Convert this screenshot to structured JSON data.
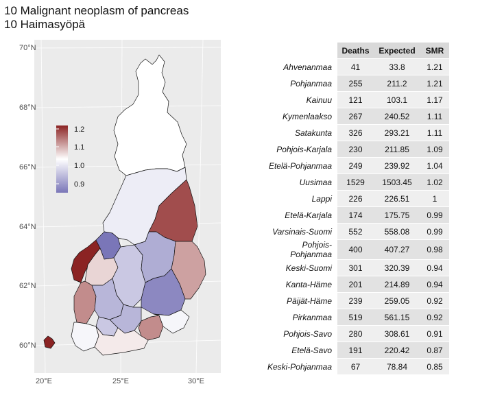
{
  "title": {
    "line1": "10 Malignant neoplasm of pancreas",
    "line2": "10 Haimasyöpä"
  },
  "chart_data": [
    {
      "type": "map",
      "x_ticks": [
        "20°E",
        "25°E",
        "30°E"
      ],
      "y_ticks": [
        "70°N",
        "68°N",
        "66°N",
        "64°N",
        "62°N",
        "60°N"
      ],
      "legend": {
        "position": "left-inside",
        "ticks": [
          "1.2",
          "1.1",
          "1.0",
          "0.9"
        ],
        "tick_values": [
          1.2,
          1.1,
          1.0,
          0.9
        ],
        "range": [
          0.85,
          1.21
        ],
        "colors": {
          "low": "#7a76b8",
          "mid": "#ffffff",
          "high": "#8b2323"
        }
      },
      "regions": [
        {
          "name": "Lappi",
          "smr": 1.0
        },
        {
          "name": "Pohjois-Pohjanmaa",
          "smr": 0.98
        },
        {
          "name": "Kainuu",
          "smr": 1.17
        },
        {
          "name": "Pohjanmaa",
          "smr": 1.21
        },
        {
          "name": "Keski-Pohjanmaa",
          "smr": 0.85
        },
        {
          "name": "Etelä-Pohjanmaa",
          "smr": 1.04
        },
        {
          "name": "Keski-Suomi",
          "smr": 0.94
        },
        {
          "name": "Pohjois-Savo",
          "smr": 0.91
        },
        {
          "name": "Pohjois-Karjala",
          "smr": 1.09
        },
        {
          "name": "Etelä-Savo",
          "smr": 0.87
        },
        {
          "name": "Satakunta",
          "smr": 1.11
        },
        {
          "name": "Pirkanmaa",
          "smr": 0.92
        },
        {
          "name": "Kanta-Häme",
          "smr": 0.94
        },
        {
          "name": "Päijät-Häme",
          "smr": 0.92
        },
        {
          "name": "Kymenlaakso",
          "smr": 1.11
        },
        {
          "name": "Etelä-Karjala",
          "smr": 0.99
        },
        {
          "name": "Varsinais-Suomi",
          "smr": 0.99
        },
        {
          "name": "Uusimaa",
          "smr": 1.02
        },
        {
          "name": "Ahvenanmaa",
          "smr": 1.21
        }
      ]
    },
    {
      "type": "table",
      "columns": [
        "",
        "Deaths",
        "Expected",
        "SMR"
      ],
      "rows": [
        [
          "Ahvenanmaa",
          "41",
          "33.8",
          "1.21"
        ],
        [
          "Pohjanmaa",
          "255",
          "211.2",
          "1.21"
        ],
        [
          "Kainuu",
          "121",
          "103.1",
          "1.17"
        ],
        [
          "Kymenlaakso",
          "267",
          "240.52",
          "1.11"
        ],
        [
          "Satakunta",
          "326",
          "293.21",
          "1.11"
        ],
        [
          "Pohjois-Karjala",
          "230",
          "211.85",
          "1.09"
        ],
        [
          "Etelä-Pohjanmaa",
          "249",
          "239.92",
          "1.04"
        ],
        [
          "Uusimaa",
          "1529",
          "1503.45",
          "1.02"
        ],
        [
          "Lappi",
          "226",
          "226.51",
          "1"
        ],
        [
          "Etelä-Karjala",
          "174",
          "175.75",
          "0.99"
        ],
        [
          "Varsinais-Suomi",
          "552",
          "558.08",
          "0.99"
        ],
        [
          "Pohjois-Pohjanmaa",
          "400",
          "407.27",
          "0.98"
        ],
        [
          "Keski-Suomi",
          "301",
          "320.39",
          "0.94"
        ],
        [
          "Kanta-Häme",
          "201",
          "214.89",
          "0.94"
        ],
        [
          "Päijät-Häme",
          "239",
          "259.05",
          "0.92"
        ],
        [
          "Pirkanmaa",
          "519",
          "561.15",
          "0.92"
        ],
        [
          "Pohjois-Savo",
          "280",
          "308.61",
          "0.91"
        ],
        [
          "Etelä-Savo",
          "191",
          "220.42",
          "0.87"
        ],
        [
          "Keski-Pohjanmaa",
          "67",
          "78.84",
          "0.85"
        ]
      ]
    }
  ]
}
